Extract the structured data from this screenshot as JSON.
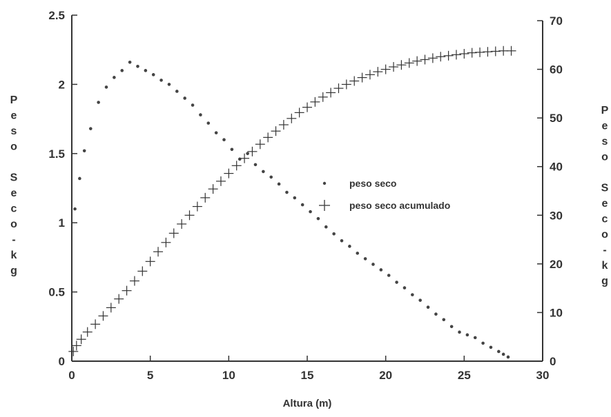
{
  "chart_data": {
    "type": "scatter",
    "xlabel": "Altura (m)",
    "ylabel_left": "Peso Seco-kg",
    "ylabel_right": "Peso Seco-kg",
    "xlim": [
      0,
      30
    ],
    "ylim_left": [
      0,
      2.5
    ],
    "ylim_right": [
      0,
      70
    ],
    "x_ticks": [
      0,
      5,
      10,
      15,
      20,
      25,
      30
    ],
    "y_left_ticks": [
      "0",
      "0.5",
      "1",
      "1.5",
      "2",
      "2.5"
    ],
    "y_right_ticks": [
      "0",
      "10",
      "20",
      "30",
      "40",
      "50",
      "60",
      "70"
    ],
    "legend_position": "center-right",
    "grid": false,
    "series": [
      {
        "name": "peso seco",
        "axis": "left",
        "marker": "dot",
        "x": [
          0.2,
          0.5,
          0.8,
          1.2,
          1.7,
          2.2,
          2.7,
          3.2,
          3.7,
          4.2,
          4.7,
          5.2,
          5.7,
          6.2,
          6.7,
          7.2,
          7.7,
          8.2,
          8.7,
          9.2,
          9.7,
          10.2,
          10.7,
          11.2,
          11.7,
          12.2,
          12.7,
          13.2,
          13.7,
          14.2,
          14.7,
          15.2,
          15.7,
          16.2,
          16.7,
          17.2,
          17.7,
          18.2,
          18.7,
          19.2,
          19.7,
          20.2,
          20.7,
          21.2,
          21.7,
          22.2,
          22.7,
          23.2,
          23.7,
          24.2,
          24.7,
          25.2,
          25.7,
          26.2,
          26.7,
          27.2,
          27.5,
          27.8
        ],
        "y": [
          1.1,
          1.32,
          1.52,
          1.68,
          1.87,
          1.98,
          2.05,
          2.1,
          2.16,
          2.13,
          2.1,
          2.07,
          2.03,
          2.0,
          1.95,
          1.9,
          1.85,
          1.78,
          1.72,
          1.65,
          1.6,
          1.53,
          1.46,
          1.5,
          1.42,
          1.37,
          1.33,
          1.28,
          1.22,
          1.18,
          1.13,
          1.08,
          1.03,
          0.97,
          0.92,
          0.87,
          0.83,
          0.78,
          0.74,
          0.7,
          0.66,
          0.62,
          0.57,
          0.53,
          0.48,
          0.44,
          0.39,
          0.34,
          0.3,
          0.25,
          0.21,
          0.19,
          0.17,
          0.13,
          0.1,
          0.07,
          0.05,
          0.03
        ]
      },
      {
        "name": "peso seco acumulado",
        "axis": "right",
        "marker": "plus",
        "x": [
          0.1,
          0.3,
          0.6,
          1.0,
          1.5,
          2.0,
          2.5,
          3.0,
          3.5,
          4.0,
          4.5,
          5.0,
          5.5,
          6.0,
          6.5,
          7.0,
          7.5,
          8.0,
          8.5,
          9.0,
          9.5,
          10.0,
          10.5,
          11.0,
          11.5,
          12.0,
          12.5,
          13.0,
          13.5,
          14.0,
          14.5,
          15.0,
          15.5,
          16.0,
          16.5,
          17.0,
          17.5,
          18.0,
          18.5,
          19.0,
          19.5,
          20.0,
          20.5,
          21.0,
          21.5,
          22.0,
          22.5,
          23.0,
          23.5,
          24.0,
          24.5,
          25.0,
          25.5,
          26.0,
          26.5,
          27.0,
          27.5,
          28.0
        ],
        "y": [
          2,
          3.2,
          4.5,
          6,
          7.6,
          9.3,
          11,
          12.8,
          14.5,
          16.5,
          18.5,
          20.5,
          22.5,
          24.4,
          26.3,
          28.2,
          30,
          31.8,
          33.6,
          35.4,
          37,
          38.6,
          40.2,
          41.7,
          43.1,
          44.6,
          46,
          47.3,
          48.6,
          49.9,
          51.1,
          52.2,
          53.3,
          54.3,
          55.2,
          56.1,
          56.9,
          57.6,
          58.3,
          58.9,
          59.5,
          60,
          60.5,
          60.9,
          61.3,
          61.7,
          62,
          62.3,
          62.6,
          62.8,
          63,
          63.2,
          63.4,
          63.5,
          63.6,
          63.7,
          63.8,
          63.8
        ]
      }
    ]
  }
}
